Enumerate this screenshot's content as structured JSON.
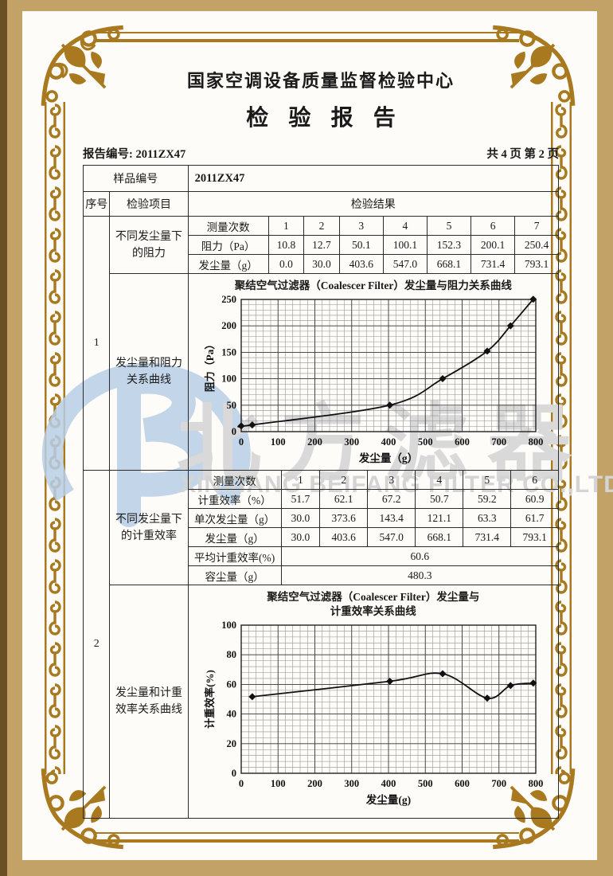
{
  "page": {
    "title": "国家空调设备质量监督检验中心",
    "subtitle": "检验报告",
    "report_no": "报告编号: 2011ZX47",
    "page_info": "共 4 页 第 2 页"
  },
  "frame": {
    "gold": "#a9791f",
    "tan": "#c2a267",
    "dark_edge": "#6a4e24"
  },
  "watermark": {
    "cn": "北方滤器",
    "en": "XINXIANG BEIFANG FILTER CO.,LTD",
    "logo_blue": "#b9cfe7",
    "gray": "#d9d9d9"
  },
  "table": {
    "sample_label": "样品编号",
    "sample_value": "2011ZX47",
    "col_seq": "序号",
    "col_item": "检验项目",
    "col_result": "检验结果",
    "s1": {
      "seq": "1",
      "item_a": "不同发尘量下的阻力",
      "item_b": "发尘量和阻力关系曲线",
      "grid": {
        "row1_label": "测量次数",
        "row1": [
          "1",
          "2",
          "3",
          "4",
          "5",
          "6",
          "7"
        ],
        "row2_label": "阻力（Pa）",
        "row2": [
          "10.8",
          "12.7",
          "50.1",
          "100.1",
          "152.3",
          "200.1",
          "250.4"
        ],
        "row3_label": "发尘量（g）",
        "row3": [
          "0.0",
          "30.0",
          "403.6",
          "547.0",
          "668.1",
          "731.4",
          "793.1"
        ]
      }
    },
    "s2": {
      "seq": "2",
      "item_a": "不同发尘量下的计重效率",
      "item_b": "发尘量和计重效率关系曲线",
      "grid": {
        "row1_label": "测量次数",
        "row1": [
          "1",
          "2",
          "3",
          "4",
          "5",
          "6"
        ],
        "row2_label": "计重效率（%）",
        "row2": [
          "51.7",
          "62.1",
          "67.2",
          "50.7",
          "59.2",
          "60.9"
        ],
        "row3_label": "单次发尘量（g）",
        "row3": [
          "30.0",
          "373.6",
          "143.4",
          "121.1",
          "63.3",
          "61.7"
        ],
        "row4_label": "发尘量（g）",
        "row4": [
          "30.0",
          "403.6",
          "547.0",
          "668.1",
          "731.4",
          "793.1"
        ],
        "avg_label": "平均计重效率(%)",
        "avg_value": "60.6",
        "cap_label": "容尘量（g）",
        "cap_value": "480.3"
      }
    }
  },
  "chart_data": [
    {
      "type": "line",
      "title": "聚结空气过滤器（Coalescer Filter）发尘量与阻力关系曲线",
      "xlabel": "发尘量（g）",
      "ylabel": "阻力（Pa）",
      "x": [
        0,
        30,
        403.6,
        547,
        668.1,
        731.4,
        793.1
      ],
      "y": [
        10.8,
        12.7,
        50.1,
        100.1,
        152.3,
        200.1,
        250.4
      ],
      "xlim": [
        0,
        800
      ],
      "ylim": [
        0,
        250
      ],
      "xticks": [
        0,
        100,
        200,
        300,
        400,
        500,
        600,
        700,
        800
      ],
      "yticks": [
        0,
        50,
        100,
        150,
        200,
        250
      ],
      "grid": true,
      "legend": "none",
      "marker": "diamond",
      "line_color": "#111111"
    },
    {
      "type": "line",
      "title": "聚结空气过滤器（Coalescer Filter）发尘量与计重效率关系曲线",
      "title_lines": [
        "聚结空气过滤器（Coalescer Filter）发尘量与",
        "计重效率关系曲线"
      ],
      "xlabel": "发尘量(g)",
      "ylabel": "计重效率(%)",
      "x": [
        30,
        403.6,
        547,
        668.1,
        731.4,
        793.1
      ],
      "y": [
        51.7,
        62.1,
        67.2,
        50.7,
        59.2,
        60.9
      ],
      "xlim": [
        0,
        800
      ],
      "ylim": [
        0,
        100
      ],
      "xticks": [
        0,
        100,
        200,
        300,
        400,
        500,
        600,
        700,
        800
      ],
      "yticks": [
        0,
        20,
        40,
        60,
        80,
        100
      ],
      "grid": true,
      "legend": "none",
      "marker": "diamond",
      "line_color": "#111111"
    }
  ]
}
